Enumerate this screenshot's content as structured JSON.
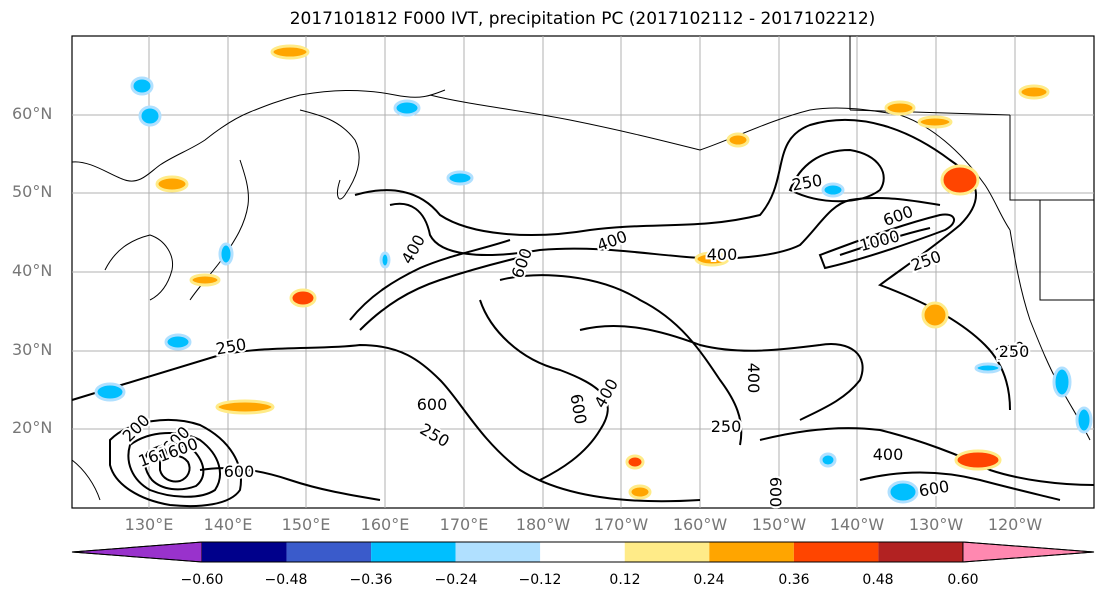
{
  "title": "2017101812 F000 IVT, precipitation PC (2017102112 - 2017102212)",
  "lat_labels": [
    "60°N",
    "50°N",
    "40°N",
    "30°N",
    "20°N"
  ],
  "lon_labels": [
    "130°E",
    "140°E",
    "150°E",
    "160°E",
    "170°E",
    "180°W",
    "170°W",
    "160°W",
    "150°W",
    "140°W",
    "130°W",
    "120°W"
  ],
  "contour_labels": [
    "250",
    "400",
    "400",
    "600",
    "600",
    "1000",
    "250",
    "400",
    "250",
    "250",
    "400",
    "600",
    "250",
    "600",
    "400",
    "250",
    "600",
    "200",
    "600",
    "600",
    "250",
    "400",
    "600",
    "1600",
    "1600"
  ],
  "colorbar": {
    "ticks": [
      "−0.60",
      "−0.48",
      "−0.36",
      "−0.24",
      "−0.12",
      "0.12",
      "0.24",
      "0.36",
      "0.48",
      "0.60"
    ],
    "colors": [
      "#9932cc",
      "#00008b",
      "#3a5bcb",
      "#00bfff",
      "#b0e0ff",
      "#ffffff",
      "#ffeb88",
      "#ffa500",
      "#ff4500",
      "#b22222",
      "#ff88b0"
    ]
  },
  "colors": {
    "contour": "#000000",
    "coast": "#000000",
    "grid": "#b0b0b0",
    "axis_label": "#777777"
  }
}
